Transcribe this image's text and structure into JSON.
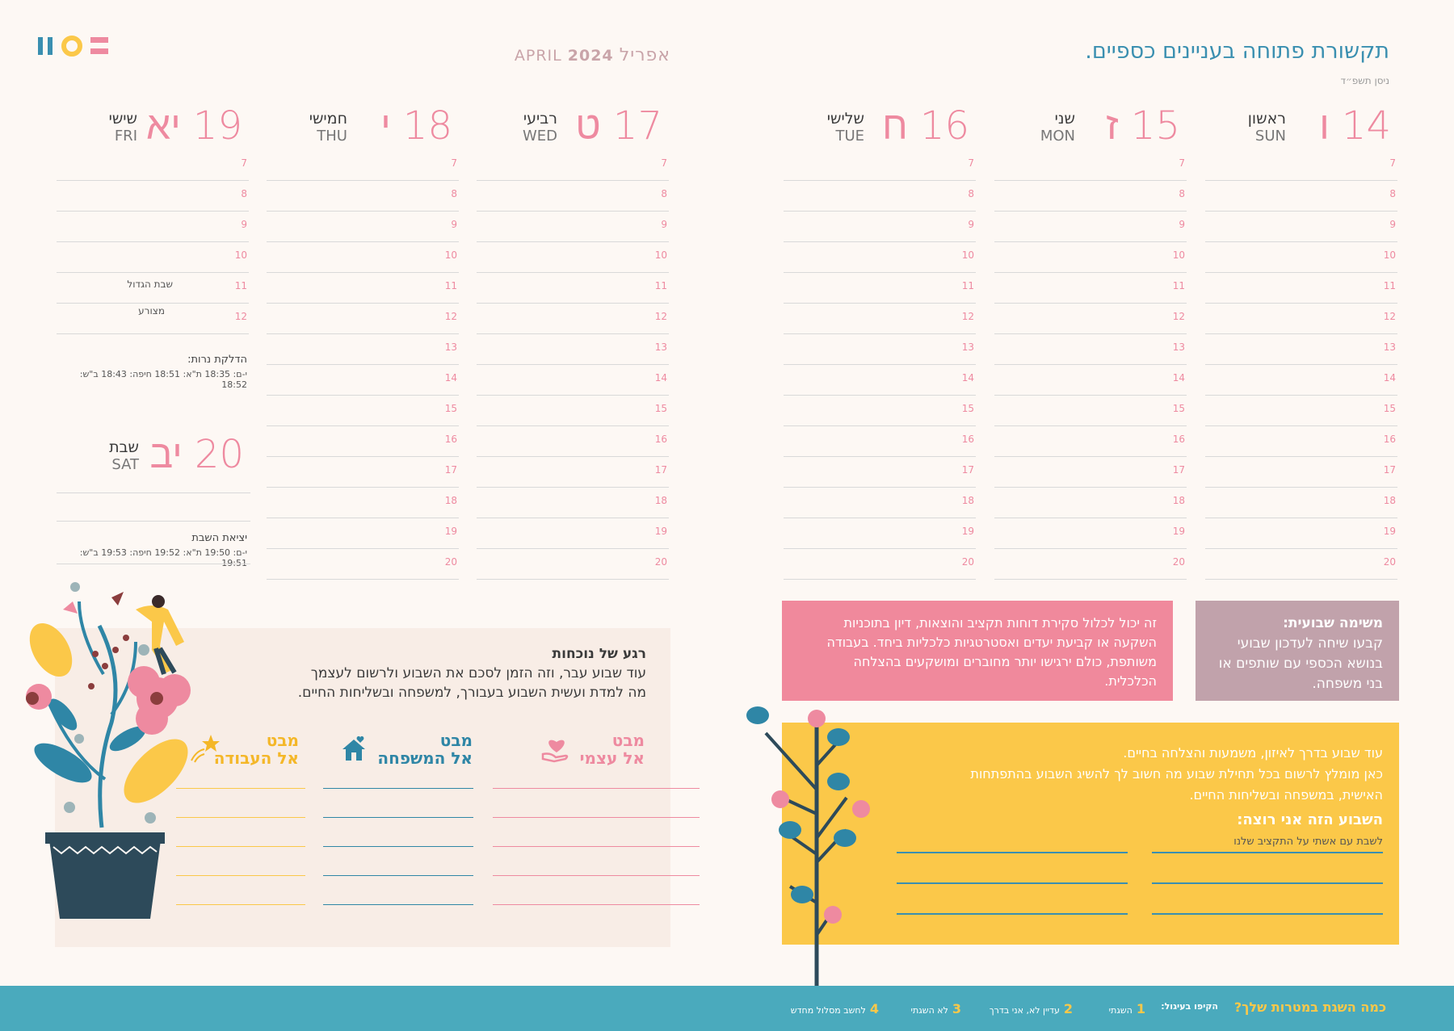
{
  "header": {
    "month_en": "APRIL",
    "year": "2024",
    "month_he": "אפריל",
    "title": "תקשורת פתוחה בעניינים כספיים.",
    "subtitle": "ניסן תשפ״ד"
  },
  "days": [
    {
      "num": "14",
      "heb": "ו",
      "name": "ראשון",
      "en": "SUN"
    },
    {
      "num": "15",
      "heb": "ז",
      "name": "שני",
      "en": "MON"
    },
    {
      "num": "16",
      "heb": "ח",
      "name": "שלישי",
      "en": "TUE"
    },
    {
      "num": "17",
      "heb": "ט",
      "name": "רביעי",
      "en": "WED"
    },
    {
      "num": "18",
      "heb": "י",
      "name": "חמישי",
      "en": "THU"
    },
    {
      "num": "19",
      "heb": "יא",
      "name": "שישי",
      "en": "FRI"
    },
    {
      "num": "20",
      "heb": "יב",
      "name": "שבת",
      "en": "SAT"
    }
  ],
  "hours": [
    "7",
    "8",
    "9",
    "10",
    "11",
    "12",
    "13",
    "14",
    "15",
    "16",
    "17",
    "18",
    "19",
    "20"
  ],
  "friday": {
    "note11": "שבת הגדול",
    "note12": "מצורע",
    "candle_title": "הדלקת נרות:",
    "candle_times": "י-ם: 18:35 ת\"א: 18:51 חיפה: 18:43 ב\"ש: 18:52"
  },
  "saturday": {
    "end_title": "יציאת השבת",
    "end_times": "י-ם: 19:50 ת\"א: 19:52 חיפה: 19:53 ב\"ש: 19:51"
  },
  "task": {
    "title": "משימה שבועית:",
    "text": "קבעו שיחה לעדכון שבועי בנושא הכספי עם שותפים או בני משפחה."
  },
  "task_detail": "זה יכול לכלול סקירת דוחות תקציב והוצאות, דיון בתוכניות השקעה או קביעת יעדים ואסטרטגיות כלכליות ביחד. בעבודה משותפת, כולם ירגישו יותר מחוברים ומושקעים בהצלחה הכלכלית.",
  "goal": {
    "line1": "עוד שבוע בדרך לאיזון, משמעות והצלחה בחיים.",
    "line2": "כאן מומלץ לרשום בכל תחילת שבוע מה חשוב לך להשיג השבוע בהתפתחות",
    "line3": "האישית, במשפחה ובשליחות החיים.",
    "question": "השבוע הזה אני רוצה:",
    "answer": "לשבת עם אשתי על התקציב שלנו"
  },
  "moment": {
    "title": "רגע של נוכחות",
    "line1": "עוד שבוע עבר, וזה הזמן לסכם את השבוע ולרשום לעצמך",
    "line2": "מה למדת ועשית השבוע בעבורך, למשפחה ובשליחות החיים."
  },
  "looks": [
    {
      "a": "מבט",
      "b": "אל עצמי",
      "color": "#ee8aa0",
      "icon": "heart-hand-icon"
    },
    {
      "a": "מבט",
      "b": "אל המשפחה",
      "color": "#2f86a6",
      "icon": "house-icon"
    },
    {
      "a": "מבט",
      "b": "אל העבודה",
      "color": "#f4b728",
      "icon": "star-icon"
    }
  ],
  "footer": {
    "title": "כמה השגת במטרות שלך?",
    "prompt": "הקיפו בעיגול:",
    "opts": [
      {
        "n": "1",
        "t": "השגתי"
      },
      {
        "n": "2",
        "t": "עדיין לא, אני בדרך"
      },
      {
        "n": "3",
        "t": "לא השגתי"
      },
      {
        "n": "4",
        "t": "לחשב מסלול מחדש"
      }
    ]
  }
}
